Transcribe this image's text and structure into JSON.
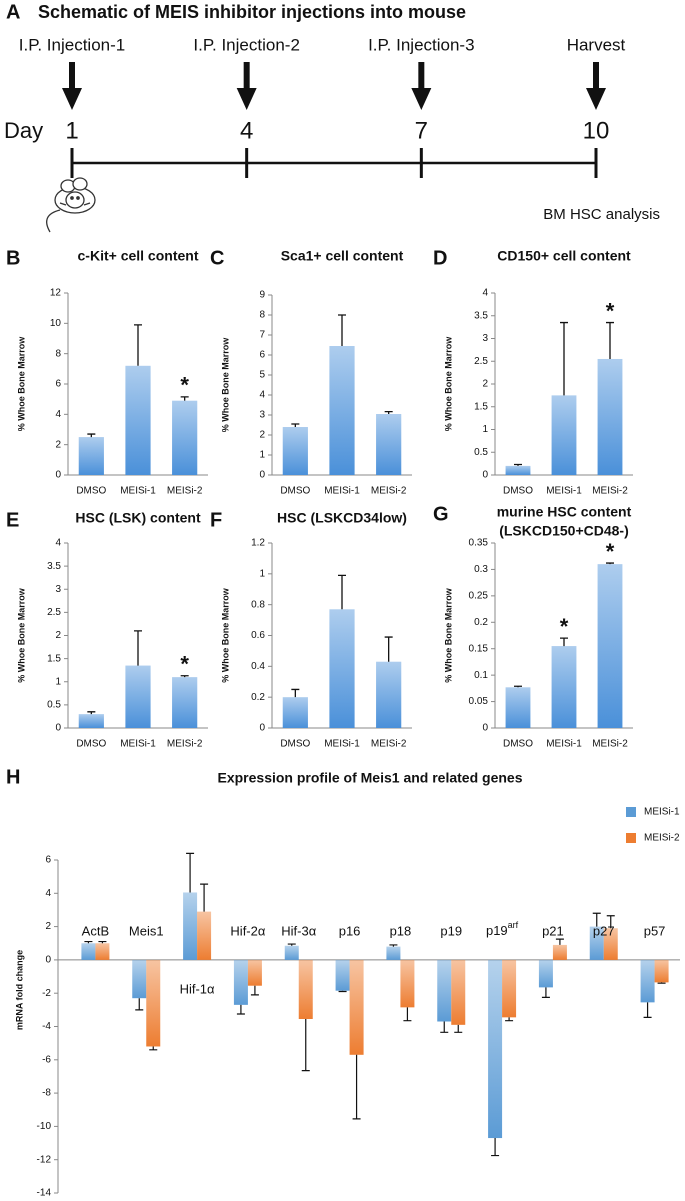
{
  "schematic": {
    "panel": "A",
    "title": "Schematic of MEIS inhibitor injections into mouse",
    "day_label": "Day",
    "events": [
      {
        "label": "I.P. Injection-1",
        "day": 1
      },
      {
        "label": "I.P. Injection-2",
        "day": 4
      },
      {
        "label": "I.P. Injection-3",
        "day": 7
      },
      {
        "label": "Harvest",
        "day": 10
      }
    ],
    "note": "BM HSC analysis"
  },
  "chart_data": [
    {
      "type": "bar",
      "panel": "B",
      "title": "c-Kit+ cell content",
      "ylabel": "% Whoe Bone Marrow",
      "categories": [
        "DMSO",
        "MEISi-1",
        "MEISi-2"
      ],
      "values": [
        2.5,
        7.2,
        4.9
      ],
      "errors": [
        0.2,
        2.7,
        0.25
      ],
      "color": "#4a90d9",
      "ylim": [
        0,
        12
      ],
      "yticks": [
        0,
        2,
        4,
        6,
        8,
        10,
        12
      ],
      "annotations": [
        {
          "text": "*",
          "category": "MEISi-2"
        }
      ]
    },
    {
      "type": "bar",
      "panel": "C",
      "title": "Sca1+ cell content",
      "ylabel": "% Whoe Bone Marrow",
      "categories": [
        "DMSO",
        "MEISi-1",
        "MEISi-2"
      ],
      "values": [
        2.4,
        6.45,
        3.05
      ],
      "errors": [
        0.15,
        1.55,
        0.12
      ],
      "color": "#4a90d9",
      "ylim": [
        0,
        9
      ],
      "yticks": [
        0,
        1,
        2,
        3,
        4,
        5,
        6,
        7,
        8,
        9
      ],
      "annotations": []
    },
    {
      "type": "bar",
      "panel": "D",
      "title": "CD150+ cell content",
      "ylabel": "% Whoe Bone Marrow",
      "categories": [
        "DMSO",
        "MEISi-1",
        "MEISi-2"
      ],
      "values": [
        0.2,
        1.75,
        2.55
      ],
      "errors": [
        0.03,
        1.6,
        0.8
      ],
      "color": "#4a90d9",
      "ylim": [
        0,
        4
      ],
      "yticks": [
        0,
        0.5,
        1,
        1.5,
        2,
        2.5,
        3,
        3.5,
        4
      ],
      "annotations": [
        {
          "text": "*",
          "category": "MEISi-2"
        }
      ]
    },
    {
      "type": "bar",
      "panel": "E",
      "title": "HSC (LSK) content",
      "ylabel": "% Whoe Bone Marrow",
      "categories": [
        "DMSO",
        "MEISi-1",
        "MEISi-2"
      ],
      "values": [
        0.3,
        1.35,
        1.1
      ],
      "errors": [
        0.05,
        0.75,
        0.03
      ],
      "color": "#4a90d9",
      "ylim": [
        0,
        4
      ],
      "yticks": [
        0,
        0.5,
        1,
        1.5,
        2,
        2.5,
        3,
        3.5,
        4
      ],
      "annotations": [
        {
          "text": "*",
          "category": "MEISi-2"
        }
      ]
    },
    {
      "type": "bar",
      "panel": "F",
      "title": "HSC (LSKCD34low)",
      "ylabel": "% Whoe Bone Marrow",
      "categories": [
        "DMSO",
        "MEISi-1",
        "MEISi-2"
      ],
      "values": [
        0.2,
        0.77,
        0.43
      ],
      "errors": [
        0.05,
        0.22,
        0.16
      ],
      "color": "#4a90d9",
      "ylim": [
        0,
        1.2
      ],
      "yticks": [
        0,
        0.2,
        0.4,
        0.6,
        0.8,
        1,
        1.2
      ],
      "annotations": []
    },
    {
      "type": "bar",
      "panel": "G",
      "title": "murine HSC content",
      "subtitle": "(LSKCD150+CD48-)",
      "ylabel": "% Whoe Bone Marrow",
      "categories": [
        "DMSO",
        "MEISi-1",
        "MEISi-2"
      ],
      "values": [
        0.077,
        0.155,
        0.31
      ],
      "errors": [
        0.002,
        0.015,
        0.002
      ],
      "color": "#4a90d9",
      "ylim": [
        0,
        0.35
      ],
      "yticks": [
        0,
        0.05,
        0.1,
        0.15,
        0.2,
        0.25,
        0.3,
        0.35
      ],
      "annotations": [
        {
          "text": "*",
          "category": "MEISi-1"
        },
        {
          "text": "*",
          "category": "MEISi-2"
        }
      ]
    },
    {
      "type": "grouped_bar",
      "panel": "H",
      "title": "Expression profile of Meis1 and related genes",
      "ylabel": "mRNA fold change",
      "categories": [
        "ActB",
        "Meis1",
        "Hif-1α",
        "Hif-2α",
        "Hif-3α",
        "p16",
        "p18",
        "p19",
        {
          "label": "p19",
          "superscript": "arf"
        },
        "p21",
        "p27",
        "p57"
      ],
      "series": [
        {
          "name": "MEISi-1",
          "color": "#5b9bd5",
          "values": [
            1.0,
            -2.3,
            4.05,
            -2.7,
            0.85,
            -1.85,
            0.8,
            -3.7,
            -10.7,
            -1.65,
            2.0,
            -2.55
          ],
          "errors": [
            0.1,
            0.7,
            2.35,
            0.55,
            0.1,
            0.05,
            0.1,
            0.65,
            1.05,
            0.6,
            0.8,
            0.9
          ]
        },
        {
          "name": "MEISi-2",
          "color": "#ed7d31",
          "values": [
            1.0,
            -5.2,
            2.9,
            -1.55,
            -3.55,
            -5.7,
            -2.85,
            -3.9,
            -3.45,
            0.9,
            1.9,
            -1.35
          ],
          "errors": [
            0.1,
            0.2,
            1.65,
            0.55,
            3.1,
            3.85,
            0.8,
            0.45,
            0.2,
            0.35,
            0.75,
            0.05
          ]
        }
      ],
      "ylim": [
        -14,
        6
      ],
      "yticks": [
        -14,
        -12,
        -10,
        -8,
        -6,
        -4,
        -2,
        0,
        2,
        4,
        6
      ],
      "legend": "upper right"
    }
  ]
}
